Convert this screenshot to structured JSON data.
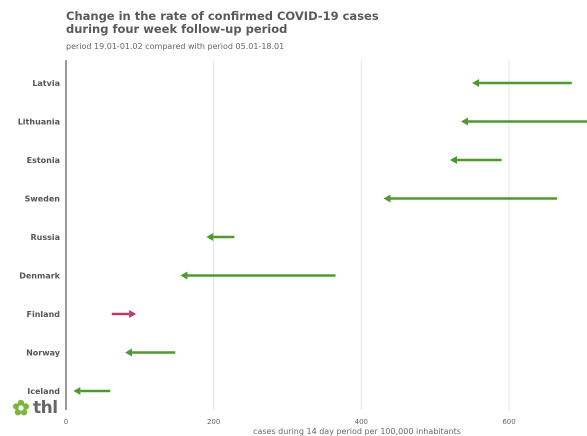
{
  "header": {
    "title_lines": [
      "Change in the rate of confirmed COVID-19 cases",
      "during four week follow-up period"
    ],
    "subtitle": "period 19.01-01.02 compared with period 05.01-18.01"
  },
  "logo": {
    "text": "thl",
    "icon": "thl-flower-icon"
  },
  "colors": {
    "decrease": "#4e9a2e",
    "increase": "#c0396e",
    "grid": "#e3e3e3",
    "axis": "#555555"
  },
  "chart_data": {
    "type": "arrow",
    "title": "Change in the rate of confirmed COVID-19 cases during four week follow-up period",
    "subtitle": "period 19.01-01.02 compared with period 05.01-18.01",
    "xlabel": "cases during 14 day period per 100,000 inhabitants",
    "ylabel": "",
    "xlim": [
      0,
      700
    ],
    "xticks": [
      0,
      200,
      400,
      600
    ],
    "grid": true,
    "categories": [
      "Latvia",
      "Lithuania",
      "Estonia",
      "Sweden",
      "Russia",
      "Denmark",
      "Finland",
      "Norway",
      "Iceland"
    ],
    "series": [
      {
        "values_from": [
          685,
          710,
          590,
          665,
          228,
          365,
          62,
          148,
          60
        ],
        "values_to": [
          550,
          535,
          520,
          430,
          190,
          155,
          95,
          80,
          10
        ]
      }
    ]
  }
}
